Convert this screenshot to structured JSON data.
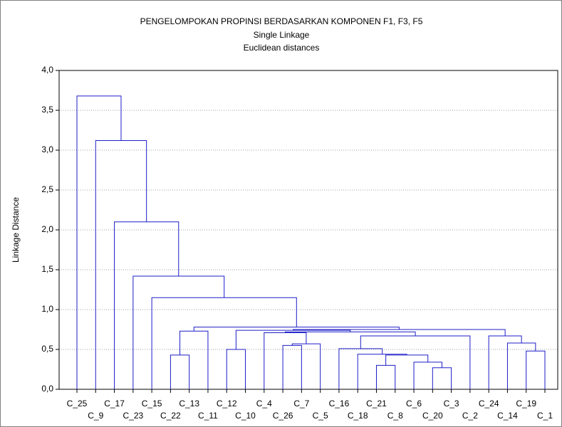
{
  "chart_data": {
    "type": "dendrogram",
    "title": "PENGELOMPOKAN PROPINSI BERDASARKAN KOMPONEN F1, F3, F5",
    "subtitle": "Single Linkage",
    "subtitle2": "Euclidean distances",
    "y_label": "Linkage Distance",
    "ylim": [
      0,
      4
    ],
    "yticks": [
      {
        "value": 0,
        "label": "0,0"
      },
      {
        "value": 0.5,
        "label": "0,5"
      },
      {
        "value": 1,
        "label": "1,0"
      },
      {
        "value": 1.5,
        "label": "1,5"
      },
      {
        "value": 2,
        "label": "2,0"
      },
      {
        "value": 2.5,
        "label": "2,5"
      },
      {
        "value": 3,
        "label": "3,0"
      },
      {
        "value": 3.5,
        "label": "3,5"
      },
      {
        "value": 4,
        "label": "4,0"
      }
    ],
    "grid": true,
    "color": "#1e1ec8",
    "tree": {
      "height": 3.68,
      "children": [
        "C_25",
        {
          "height": 3.12,
          "children": [
            "C_9",
            {
              "height": 2.1,
              "children": [
                "C_17",
                {
                  "height": 1.42,
                  "children": [
                    "C_23",
                    {
                      "height": 1.15,
                      "children": [
                        "C_15",
                        {
                          "height": 0.78,
                          "children": [
                            {
                              "height": 0.73,
                              "children": [
                                {
                                  "height": 0.43,
                                  "children": [
                                    "C_22",
                                    "C_13"
                                  ]
                                },
                                "C_11"
                              ]
                            },
                            {
                              "height": 0.75,
                              "children": [
                                {
                                  "height": 0.74,
                                  "children": [
                                    {
                                      "height": 0.5,
                                      "children": [
                                        "C_12",
                                        "C_10"
                                      ]
                                    },
                                    {
                                      "height": 0.72,
                                      "children": [
                                        {
                                          "height": 0.71,
                                          "children": [
                                            "C_4",
                                            {
                                              "height": 0.57,
                                              "children": [
                                                {
                                                  "height": 0.55,
                                                  "children": [
                                                    "C_26",
                                                    "C_7"
                                                  ]
                                                },
                                                "C_5"
                                              ]
                                            }
                                          ]
                                        },
                                        {
                                          "height": 0.67,
                                          "children": [
                                            {
                                              "height": 0.51,
                                              "children": [
                                                "C_16",
                                                {
                                                  "height": 0.44,
                                                  "children": [
                                                    "C_18",
                                                    {
                                                      "height": 0.43,
                                                      "children": [
                                                        {
                                                          "height": 0.3,
                                                          "children": [
                                                            "C_21",
                                                            "C_8"
                                                          ]
                                                        },
                                                        {
                                                          "height": 0.34,
                                                          "children": [
                                                            "C_6",
                                                            {
                                                              "height": 0.27,
                                                              "children": [
                                                                "C_20",
                                                                "C_3"
                                                              ]
                                                            }
                                                          ]
                                                        }
                                                      ]
                                                    }
                                                  ]
                                                }
                                              ]
                                            },
                                            "C_2"
                                          ]
                                        }
                                      ]
                                    }
                                  ]
                                },
                                {
                                  "height": 0.67,
                                  "children": [
                                    "C_24",
                                    {
                                      "height": 0.58,
                                      "children": [
                                        "C_14",
                                        {
                                          "height": 0.48,
                                          "children": [
                                            "C_19",
                                            "C_1"
                                          ]
                                        }
                                      ]
                                    }
                                  ]
                                }
                              ]
                            }
                          ]
                        }
                      ]
                    }
                  ]
                }
              ]
            }
          ]
        }
      ]
    }
  }
}
